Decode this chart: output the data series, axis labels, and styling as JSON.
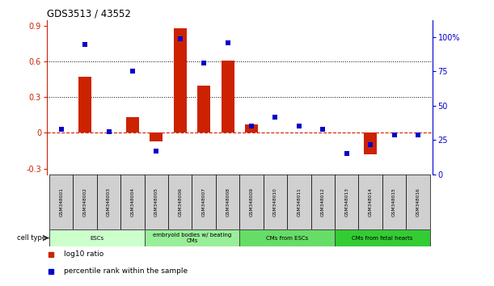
{
  "title": "GDS3513 / 43552",
  "samples": [
    "GSM348001",
    "GSM348002",
    "GSM348003",
    "GSM348004",
    "GSM348005",
    "GSM348006",
    "GSM348007",
    "GSM348008",
    "GSM348009",
    "GSM348010",
    "GSM348011",
    "GSM348012",
    "GSM348013",
    "GSM348014",
    "GSM348015",
    "GSM348016"
  ],
  "log10_ratio": [
    0.0,
    0.47,
    0.0,
    0.13,
    -0.07,
    0.88,
    0.4,
    0.61,
    0.07,
    0.0,
    0.0,
    0.0,
    0.0,
    -0.18,
    0.0,
    0.0
  ],
  "percentile_rank": [
    33,
    95,
    31,
    75,
    17,
    99,
    81,
    96,
    35,
    42,
    35,
    33,
    15,
    22,
    29,
    29
  ],
  "cell_types": [
    {
      "label": "ESCs",
      "start": 0,
      "end": 4,
      "color": "#ccffcc"
    },
    {
      "label": "embryoid bodies w/ beating\nCMs",
      "start": 4,
      "end": 8,
      "color": "#99ee99"
    },
    {
      "label": "CMs from ESCs",
      "start": 8,
      "end": 12,
      "color": "#66dd66"
    },
    {
      "label": "CMs from fetal hearts",
      "start": 12,
      "end": 16,
      "color": "#33cc33"
    }
  ],
  "bar_color": "#cc2200",
  "dot_color": "#0000cc",
  "ylim_left": [
    -0.35,
    0.95
  ],
  "ylim_right": [
    0,
    112.5
  ],
  "yticks_left": [
    -0.3,
    0.0,
    0.3,
    0.6,
    0.9
  ],
  "ytick_labels_left": [
    "-0.3",
    "0",
    "0.3",
    "0.6",
    "0.9"
  ],
  "yticks_right": [
    0,
    25,
    50,
    75,
    100
  ],
  "ytick_labels_right": [
    "0",
    "25",
    "50",
    "75",
    "100%"
  ],
  "hlines": [
    0.3,
    0.6
  ],
  "background_color": "#ffffff",
  "plot_bg": "#ffffff",
  "box_color": "#d0d0d0",
  "legend_items": [
    {
      "label": "log10 ratio",
      "color": "#cc2200"
    },
    {
      "label": "percentile rank within the sample",
      "color": "#0000cc"
    }
  ]
}
